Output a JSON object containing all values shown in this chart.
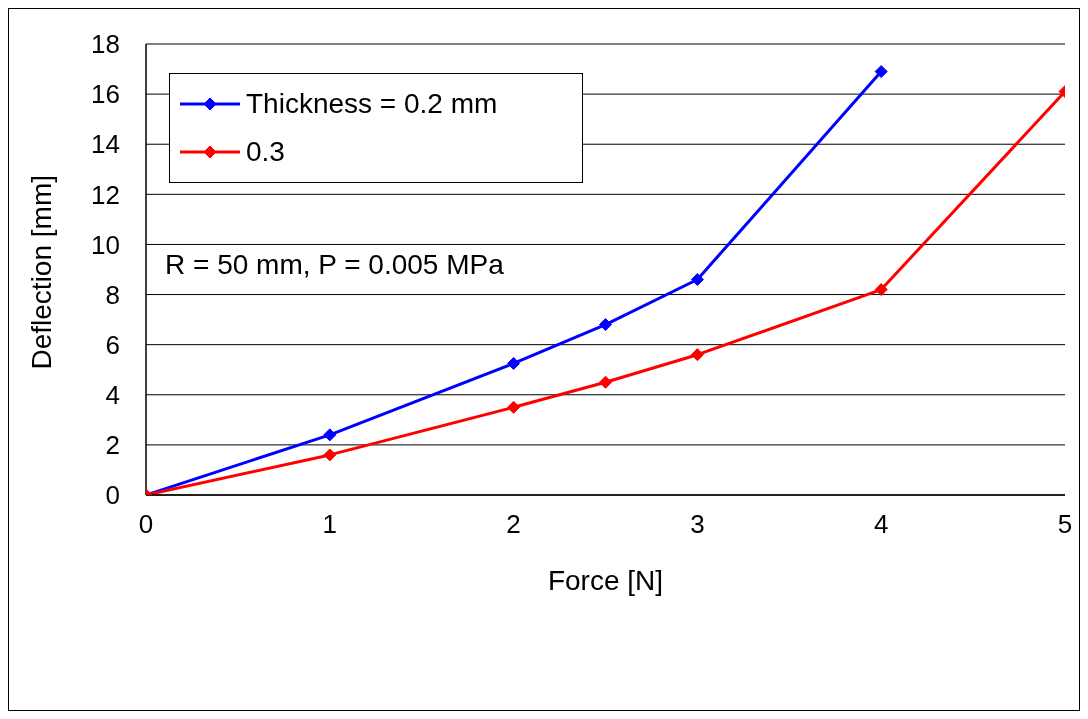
{
  "chart_data": {
    "type": "line",
    "xlabel": "Force [N]",
    "ylabel": "Deflection [mm]",
    "annotations": [
      "R = 50 mm, P = 0.005 MPa"
    ],
    "series": [
      {
        "name": "Thickness = 0.2 mm",
        "color": "#0000ff",
        "x": [
          0,
          1,
          2,
          2.5,
          3,
          4
        ],
        "values": [
          0,
          2.4,
          5.25,
          6.8,
          8.6,
          16.9
        ]
      },
      {
        "name": "0.3",
        "color": "#ff0000",
        "x": [
          0,
          1,
          2,
          2.5,
          3,
          4,
          5
        ],
        "values": [
          0,
          1.6,
          3.5,
          4.5,
          5.6,
          8.2,
          16.1
        ]
      }
    ],
    "xlim": [
      0,
      5
    ],
    "xticks": [
      0,
      1,
      2,
      3,
      4,
      5
    ],
    "ylim": [
      0,
      18
    ],
    "yticks": [
      0,
      2,
      4,
      6,
      8,
      10,
      12,
      14,
      16,
      18
    ],
    "grid": "y",
    "legend": "top left",
    "marker": "diamond",
    "line_style": "solid"
  }
}
